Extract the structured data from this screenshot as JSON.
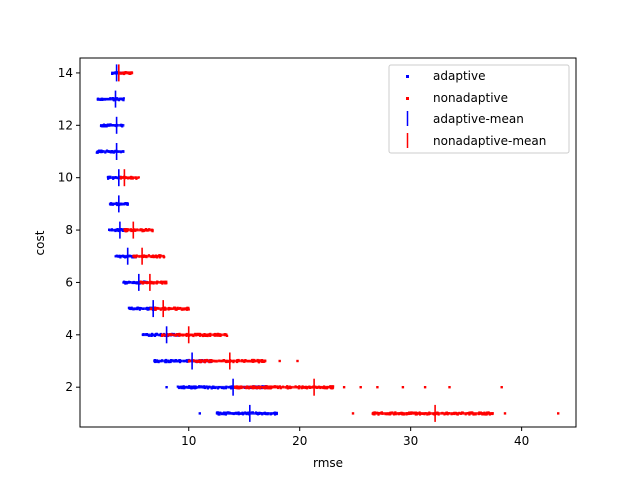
{
  "chart_data": {
    "type": "scatter",
    "xlabel": "rmse",
    "ylabel": "cost",
    "xlim": [
      0.2,
      44.9
    ],
    "ylim": [
      0.48,
      14.57
    ],
    "xticks": [
      10,
      20,
      30,
      40
    ],
    "yticks": [
      2,
      4,
      6,
      8,
      10,
      12,
      14
    ],
    "grid": false,
    "legend_position": "top-right",
    "colors": {
      "adaptive": "#0000ff",
      "nonadaptive": "#ff0000"
    },
    "series": [
      {
        "name": "adaptive",
        "marker": "point",
        "ranges": [
          {
            "cost": 14,
            "xmin": 3.0,
            "xmax": 4.0
          },
          {
            "cost": 13,
            "xmin": 1.8,
            "xmax": 4.2
          },
          {
            "cost": 12,
            "xmin": 2.0,
            "xmax": 4.2
          },
          {
            "cost": 11,
            "xmin": 1.7,
            "xmax": 4.2
          },
          {
            "cost": 10,
            "xmin": 2.7,
            "xmax": 4.0
          },
          {
            "cost": 9,
            "xmin": 2.8,
            "xmax": 4.5
          },
          {
            "cost": 8,
            "xmin": 2.8,
            "xmax": 4.5
          },
          {
            "cost": 7,
            "xmin": 3.4,
            "xmax": 5.3
          },
          {
            "cost": 6,
            "xmin": 4.1,
            "xmax": 6.3
          },
          {
            "cost": 5,
            "xmin": 4.6,
            "xmax": 7.0
          },
          {
            "cost": 4,
            "xmin": 5.8,
            "xmax": 9.0
          },
          {
            "cost": 3,
            "xmin": 6.8,
            "xmax": 12.0
          },
          {
            "cost": 2,
            "xmin": 9.0,
            "xmax": 17.0
          },
          {
            "cost": 1,
            "xmin": 12.5,
            "xmax": 18.0
          }
        ],
        "outliers": [
          {
            "cost": 2,
            "x": 8.0
          },
          {
            "cost": 1,
            "x": 11.0
          }
        ]
      },
      {
        "name": "nonadaptive",
        "marker": "point",
        "ranges": [
          {
            "cost": 14,
            "xmin": 3.8,
            "xmax": 5.0
          },
          {
            "cost": 10,
            "xmin": 3.8,
            "xmax": 5.5
          },
          {
            "cost": 8,
            "xmin": 4.2,
            "xmax": 6.8
          },
          {
            "cost": 7,
            "xmin": 5.0,
            "xmax": 7.8
          },
          {
            "cost": 6,
            "xmin": 5.5,
            "xmax": 8.0
          },
          {
            "cost": 5,
            "xmin": 6.5,
            "xmax": 10.0
          },
          {
            "cost": 4,
            "xmin": 7.5,
            "xmax": 13.5
          },
          {
            "cost": 3,
            "xmin": 10.0,
            "xmax": 17.0
          },
          {
            "cost": 2,
            "xmin": 14.0,
            "xmax": 23.0
          },
          {
            "cost": 1,
            "xmin": 26.5,
            "xmax": 37.5
          }
        ],
        "outliers": [
          {
            "cost": 3,
            "x": 18.2
          },
          {
            "cost": 3,
            "x": 19.8
          },
          {
            "cost": 2,
            "x": 24.0
          },
          {
            "cost": 2,
            "x": 25.5
          },
          {
            "cost": 2,
            "x": 27.0
          },
          {
            "cost": 2,
            "x": 29.3
          },
          {
            "cost": 2,
            "x": 31.3
          },
          {
            "cost": 2,
            "x": 33.5
          },
          {
            "cost": 2,
            "x": 38.2
          },
          {
            "cost": 1,
            "x": 24.8
          },
          {
            "cost": 1,
            "x": 38.5
          },
          {
            "cost": 1,
            "x": 43.3
          }
        ]
      },
      {
        "name": "adaptive-mean",
        "marker": "vline",
        "points": [
          {
            "cost": 14,
            "x": 3.5
          },
          {
            "cost": 13,
            "x": 3.4
          },
          {
            "cost": 12,
            "x": 3.5
          },
          {
            "cost": 11,
            "x": 3.5
          },
          {
            "cost": 10,
            "x": 3.7
          },
          {
            "cost": 9,
            "x": 3.7
          },
          {
            "cost": 8,
            "x": 3.8
          },
          {
            "cost": 7,
            "x": 4.5
          },
          {
            "cost": 6,
            "x": 5.5
          },
          {
            "cost": 5,
            "x": 6.8
          },
          {
            "cost": 4,
            "x": 8.0
          },
          {
            "cost": 3,
            "x": 10.3
          },
          {
            "cost": 2,
            "x": 14.0
          },
          {
            "cost": 1,
            "x": 15.5
          }
        ]
      },
      {
        "name": "nonadaptive-mean",
        "marker": "vline",
        "points": [
          {
            "cost": 14,
            "x": 3.7
          },
          {
            "cost": 10,
            "x": 4.2
          },
          {
            "cost": 8,
            "x": 5.0
          },
          {
            "cost": 7,
            "x": 5.8
          },
          {
            "cost": 6,
            "x": 6.5
          },
          {
            "cost": 5,
            "x": 7.7
          },
          {
            "cost": 4,
            "x": 10.0
          },
          {
            "cost": 3,
            "x": 13.7
          },
          {
            "cost": 2,
            "x": 21.3
          },
          {
            "cost": 1,
            "x": 32.2
          }
        ]
      }
    ]
  }
}
